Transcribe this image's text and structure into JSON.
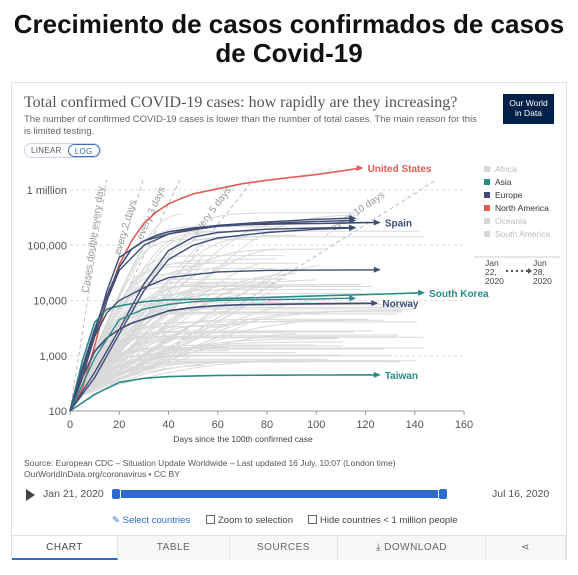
{
  "page_heading": "Crecimiento de casos confirmados de casos de Covid-19",
  "chart": {
    "title": "Total confirmed COVID-19 cases: how rapidly are they increasing?",
    "subtitle": "The number of confirmed COVID-19 cases is lower than the number of total cases. The main reason for this is limited testing.",
    "logo_line1": "Our World",
    "logo_line2": "in Data",
    "scale_linear": "LINEAR",
    "scale_log": "LOG"
  },
  "chart_data": {
    "type": "line",
    "title": "Total confirmed COVID-19 cases: how rapidly are they increasing?",
    "xlabel": "Days since the 100th confirmed case",
    "ylabel": "",
    "xlim": [
      0,
      160
    ],
    "ylim": [
      100,
      3000000
    ],
    "yscale": "log",
    "x_ticks": [
      0,
      20,
      40,
      60,
      80,
      100,
      120,
      140,
      160
    ],
    "y_ticks": [
      {
        "value": 100,
        "label": "100"
      },
      {
        "value": 1000,
        "label": "1,000"
      },
      {
        "value": 10000,
        "label": "10,000"
      },
      {
        "value": 100000,
        "label": "100,000"
      },
      {
        "value": 1000000,
        "label": "1 million"
      }
    ],
    "grid": "horizontal",
    "doubling_lines": [
      {
        "label": "Cases double every day",
        "days": 1
      },
      {
        "label": "...every 2 days",
        "days": 2
      },
      {
        "label": "...every 3 days",
        "days": 3
      },
      {
        "label": "...every 5 days",
        "days": 5
      },
      {
        "label": "...every 10 days",
        "days": 10
      }
    ],
    "legend": [
      {
        "name": "Africa",
        "color": "#d6d6d6"
      },
      {
        "name": "Asia",
        "color": "#2a8a8a"
      },
      {
        "name": "Europe",
        "color": "#3f4d75"
      },
      {
        "name": "North America",
        "color": "#e25c55"
      },
      {
        "name": "Oceania",
        "color": "#d6d6d6"
      },
      {
        "name": "South America",
        "color": "#d6d6d6"
      }
    ],
    "legend_placement": "right",
    "date_range": {
      "start_month": "Jan",
      "start_day": "22,",
      "start_year": "2020",
      "end_month": "Jun",
      "end_day": "28,",
      "end_year": "2020"
    },
    "series": [
      {
        "name": "United States",
        "color": "#e25c55",
        "x": [
          0,
          5,
          10,
          15,
          20,
          25,
          30,
          35,
          40,
          45,
          50,
          60,
          70,
          80,
          90,
          100,
          110,
          118
        ],
        "y": [
          100,
          250,
          1500,
          10000,
          45000,
          120000,
          250000,
          400000,
          560000,
          700000,
          850000,
          1050000,
          1300000,
          1500000,
          1700000,
          1900000,
          2200000,
          2500000
        ]
      },
      {
        "name": "Spain",
        "color": "#3f4d75",
        "x": [
          0,
          5,
          10,
          15,
          20,
          25,
          30,
          35,
          40,
          50,
          60,
          70,
          80,
          90,
          100,
          110,
          120,
          125
        ],
        "y": [
          100,
          600,
          3000,
          12000,
          40000,
          85000,
          120000,
          150000,
          175000,
          205000,
          225000,
          235000,
          240000,
          245000,
          248000,
          252000,
          257000,
          258000
        ]
      },
      {
        "name": "Norway",
        "color": "#3f4d75",
        "x": [
          0,
          5,
          10,
          15,
          20,
          25,
          30,
          40,
          50,
          60,
          70,
          80,
          90,
          100,
          110,
          120,
          124
        ],
        "y": [
          100,
          400,
          1200,
          2100,
          3000,
          3900,
          4600,
          6500,
          7500,
          8100,
          8400,
          8500,
          8600,
          8700,
          8800,
          8900,
          8950
        ]
      },
      {
        "name": "South Korea",
        "color": "#2a8a8a",
        "x": [
          0,
          5,
          10,
          15,
          20,
          30,
          40,
          60,
          80,
          100,
          120,
          140,
          143
        ],
        "y": [
          100,
          800,
          4000,
          7000,
          8000,
          9500,
          10300,
          10800,
          11400,
          12100,
          12800,
          13600,
          13800
        ]
      },
      {
        "name": "Taiwan",
        "color": "#2a8a8a",
        "x": [
          0,
          10,
          20,
          30,
          40,
          60,
          80,
          100,
          120,
          125
        ],
        "y": [
          100,
          200,
          330,
          390,
          420,
          440,
          445,
          448,
          450,
          451
        ]
      },
      {
        "name": "",
        "color": "#3f4d75",
        "x": [
          0,
          5,
          10,
          15,
          20,
          30,
          40,
          50,
          60,
          80,
          100,
          115
        ],
        "y": [
          100,
          500,
          2500,
          15000,
          60000,
          120000,
          160000,
          190000,
          220000,
          250000,
          270000,
          280000
        ]
      },
      {
        "name": "",
        "color": "#3f4d75",
        "x": [
          0,
          5,
          10,
          15,
          20,
          30,
          40,
          50,
          60,
          80,
          100,
          115
        ],
        "y": [
          100,
          400,
          2200,
          10000,
          35000,
          100000,
          160000,
          200000,
          230000,
          265000,
          295000,
          310000
        ]
      },
      {
        "name": "",
        "color": "#3f4d75",
        "x": [
          0,
          10,
          20,
          30,
          40,
          50,
          60,
          80,
          100,
          115
        ],
        "y": [
          100,
          500,
          3000,
          20000,
          80000,
          140000,
          170000,
          195000,
          205000,
          210000
        ]
      },
      {
        "name": "",
        "color": "#3f4d75",
        "x": [
          0,
          10,
          20,
          30,
          40,
          50,
          60,
          80,
          100,
          115
        ],
        "y": [
          100,
          400,
          2500,
          15000,
          55000,
          100000,
          135000,
          170000,
          195000,
          205000
        ]
      },
      {
        "name": "",
        "color": "#2a8a8a",
        "x": [
          0,
          10,
          20,
          30,
          40,
          50,
          60,
          70,
          80,
          90,
          100,
          115
        ],
        "y": [
          100,
          900,
          4500,
          7000,
          8500,
          9500,
          10000,
          10200,
          10400,
          10500,
          10700,
          11000
        ]
      },
      {
        "name": "",
        "color": "#3f4d75",
        "x": [
          0,
          5,
          10,
          15,
          20,
          30,
          40,
          60,
          80,
          100,
          120,
          125
        ],
        "y": [
          100,
          600,
          2200,
          6000,
          10000,
          17000,
          26000,
          33000,
          35000,
          35500,
          35800,
          36000
        ]
      }
    ]
  },
  "source": {
    "line1": "Source: European CDC – Situation Update Worldwide – Last updated 16 July, 10:07 (London time)",
    "line2": "OurWorldInData.org/coronavirus • CC BY"
  },
  "timeline": {
    "start_label": "Jan 21, 2020",
    "end_label": "Jul 16, 2020",
    "progress_start": 0.0,
    "progress_end": 0.985
  },
  "controls": {
    "select_countries": "Select countries",
    "zoom_to_selection": "Zoom to selection",
    "hide_countries": "Hide countries < 1 million people"
  },
  "tabs": [
    {
      "label": "CHART",
      "active": true
    },
    {
      "label": "TABLE",
      "active": false
    },
    {
      "label": "SOURCES",
      "active": false
    },
    {
      "label": "DOWNLOAD",
      "active": false
    },
    {
      "label": "",
      "active": false
    }
  ]
}
